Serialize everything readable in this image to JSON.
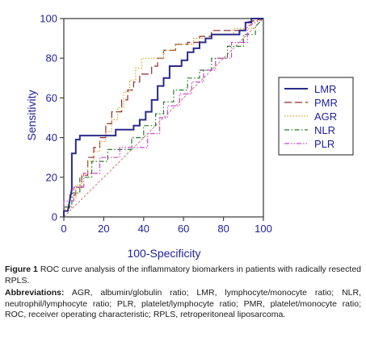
{
  "chart_data": {
    "type": "line",
    "xlabel": "100-Specificity",
    "ylabel": "Sensitivity",
    "xlim": [
      0,
      100
    ],
    "ylim": [
      0,
      100
    ],
    "xticks": [
      "0",
      "20",
      "40",
      "60",
      "80",
      "100"
    ],
    "yticks": [
      "0",
      "20",
      "40",
      "60",
      "80",
      "100"
    ],
    "grid": false,
    "legend_position": "right",
    "reference_line": {
      "x": [
        0,
        100
      ],
      "y": [
        0,
        100
      ],
      "color": "#cc7a7a"
    },
    "series": [
      {
        "name": "LMR",
        "color": "#2a2a8c",
        "dash": "solid",
        "x": [
          0,
          0,
          2,
          4,
          4,
          6,
          6,
          8,
          8,
          26,
          26,
          35,
          35,
          38,
          38,
          41,
          41,
          44,
          44,
          47,
          47,
          50,
          50,
          53,
          53,
          59,
          59,
          62,
          62,
          65,
          65,
          68,
          68,
          71,
          71,
          74,
          74,
          88,
          88,
          91,
          91,
          94,
          94,
          100
        ],
        "y": [
          0,
          3,
          3,
          14,
          32,
          32,
          39,
          39,
          41,
          41,
          44,
          44,
          46,
          46,
          49,
          49,
          53,
          53,
          59,
          59,
          66,
          66,
          70,
          70,
          76,
          76,
          79,
          79,
          83,
          83,
          85,
          85,
          88,
          88,
          90,
          90,
          92,
          92,
          94,
          94,
          98,
          98,
          100,
          100
        ]
      },
      {
        "name": "PMR",
        "color": "#8c2a2a",
        "dash": "long-dash",
        "x": [
          0,
          0,
          3,
          3,
          6,
          6,
          9,
          9,
          12,
          12,
          15,
          15,
          18,
          18,
          21,
          21,
          24,
          24,
          29,
          29,
          32,
          32,
          35,
          35,
          38,
          38,
          44,
          44,
          47,
          47,
          50,
          50,
          56,
          56,
          62,
          62,
          68,
          68,
          74,
          74,
          79,
          79,
          85,
          85,
          91,
          91,
          100
        ],
        "y": [
          0,
          5,
          5,
          11,
          11,
          15,
          15,
          21,
          21,
          30,
          30,
          35,
          35,
          40,
          40,
          47,
          47,
          53,
          53,
          59,
          59,
          64,
          64,
          68,
          68,
          72,
          72,
          76,
          76,
          80,
          80,
          84,
          84,
          87,
          87,
          88,
          88,
          91,
          91,
          94,
          94,
          94,
          94,
          94,
          94,
          98,
          100
        ]
      },
      {
        "name": "AGR",
        "color": "#d9a020",
        "dash": "dot",
        "x": [
          0,
          0,
          3,
          3,
          6,
          6,
          9,
          9,
          12,
          12,
          15,
          15,
          18,
          18,
          21,
          21,
          24,
          24,
          27,
          27,
          30,
          30,
          33,
          33,
          36,
          36,
          39,
          39,
          44,
          44,
          50,
          50,
          56,
          56,
          65,
          65,
          74,
          74,
          85,
          85,
          94,
          94,
          100
        ],
        "y": [
          0,
          4,
          4,
          10,
          10,
          16,
          16,
          22,
          22,
          28,
          28,
          33,
          33,
          38,
          38,
          43,
          43,
          49,
          49,
          55,
          55,
          63,
          63,
          69,
          69,
          75,
          75,
          80,
          80,
          80,
          80,
          84,
          84,
          87,
          87,
          90,
          90,
          92,
          92,
          95,
          95,
          98,
          100
        ]
      },
      {
        "name": "NLR",
        "color": "#2a7a2a",
        "dash": "dash-dot",
        "x": [
          0,
          0,
          4,
          4,
          8,
          8,
          14,
          14,
          22,
          22,
          34,
          34,
          40,
          40,
          46,
          46,
          50,
          50,
          55,
          55,
          62,
          62,
          68,
          68,
          74,
          74,
          82,
          82,
          90,
          90,
          96,
          96,
          100
        ],
        "y": [
          0,
          5,
          5,
          12,
          12,
          20,
          20,
          28,
          28,
          34,
          34,
          40,
          40,
          46,
          46,
          52,
          52,
          58,
          58,
          64,
          64,
          70,
          70,
          74,
          74,
          80,
          80,
          86,
          86,
          92,
          92,
          96,
          100
        ]
      },
      {
        "name": "PLR",
        "color": "#d040d0",
        "dash": "dash-dot-dot",
        "x": [
          0,
          0,
          5,
          5,
          10,
          10,
          18,
          18,
          28,
          28,
          42,
          42,
          48,
          48,
          52,
          52,
          58,
          58,
          64,
          64,
          70,
          70,
          76,
          76,
          84,
          84,
          92,
          92,
          100
        ],
        "y": [
          0,
          8,
          8,
          15,
          15,
          22,
          22,
          30,
          30,
          35,
          35,
          42,
          42,
          50,
          50,
          56,
          56,
          62,
          62,
          68,
          68,
          74,
          74,
          80,
          80,
          88,
          88,
          96,
          100
        ]
      }
    ]
  },
  "caption": {
    "figure_label": "Figure 1",
    "text": "ROC curve analysis of the inflammatory biomarkers in patients with radically resected RPLS.",
    "abbr_label": "Abbreviations:",
    "abbr_text": "AGR, albumin/globulin ratio; LMR, lymphocyte/monocyte ratio; NLR, neutrophil/lymphocyte ratio; PLR, platelet/lymphocyte ratio; PMR, platelet/monocyte ratio; ROC, receiver operating characteristic; RPLS, retroperitoneal liposarcoma."
  }
}
